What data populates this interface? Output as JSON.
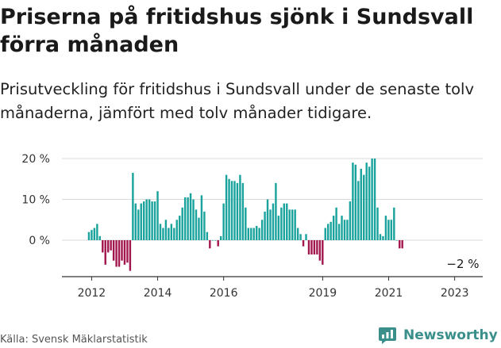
{
  "title": "Priserna på fritidshus sjönk i Sundsvall förra månaden",
  "subtitle": "Prisutveckling för fritidshus i Sundsvall under de senaste tolv månaderna, jämfört med tolv månader tidigare.",
  "source": "Källa: Svensk Mäklarstatistik",
  "brand": "Newsworthy",
  "colors": {
    "positive": "#1aa39c",
    "negative": "#a3174f",
    "brand": "#3a8f8a",
    "grid": "#d9d9d9",
    "axis": "#333333"
  },
  "chart_data": {
    "type": "bar",
    "xlabel": "",
    "ylabel": "",
    "ylim": [
      -8,
      20
    ],
    "yticks": [
      0,
      10,
      20
    ],
    "ytick_labels": [
      "0 %",
      "10 %",
      "20 %"
    ],
    "xticks": [
      "2012",
      "2014",
      "2016",
      "2019",
      "2021",
      "2023"
    ],
    "xtick_positions": [
      2012.0,
      2014.0,
      2016.0,
      2019.0,
      2021.0,
      2023.0
    ],
    "start": 2011.917,
    "step": 0.0833,
    "values": [
      2,
      2.5,
      3,
      4,
      1,
      -3,
      -6,
      -3,
      -2.5,
      -5,
      -6.5,
      -6.5,
      -5,
      -6,
      -5.5,
      -7.5,
      16.5,
      9,
      7.5,
      9,
      9.5,
      10,
      10,
      9.5,
      9.5,
      12,
      4,
      3,
      5,
      3,
      4,
      3,
      5,
      6,
      8,
      10.5,
      10.5,
      11.5,
      10,
      7.5,
      5.5,
      11,
      7,
      2,
      -2,
      0,
      0,
      -1.5,
      1,
      9,
      16,
      15,
      14.5,
      14.5,
      14,
      16,
      14,
      8,
      3,
      3,
      3,
      3.5,
      3,
      5,
      7,
      10,
      7.5,
      9,
      14,
      6,
      8,
      9,
      9,
      7.5,
      7.5,
      7.5,
      3,
      1.5,
      -1.5,
      1.5,
      -3.5,
      -3.5,
      -3.5,
      -3.5,
      -5,
      -6,
      3,
      4,
      4.5,
      6,
      8,
      4,
      6,
      5,
      5,
      9.5,
      19,
      18.5,
      14.5,
      17.5,
      16,
      19,
      18,
      20,
      20,
      8,
      1.5,
      1,
      6,
      5,
      5,
      8,
      0,
      -2,
      -2
    ],
    "last_label": "−2 %"
  }
}
